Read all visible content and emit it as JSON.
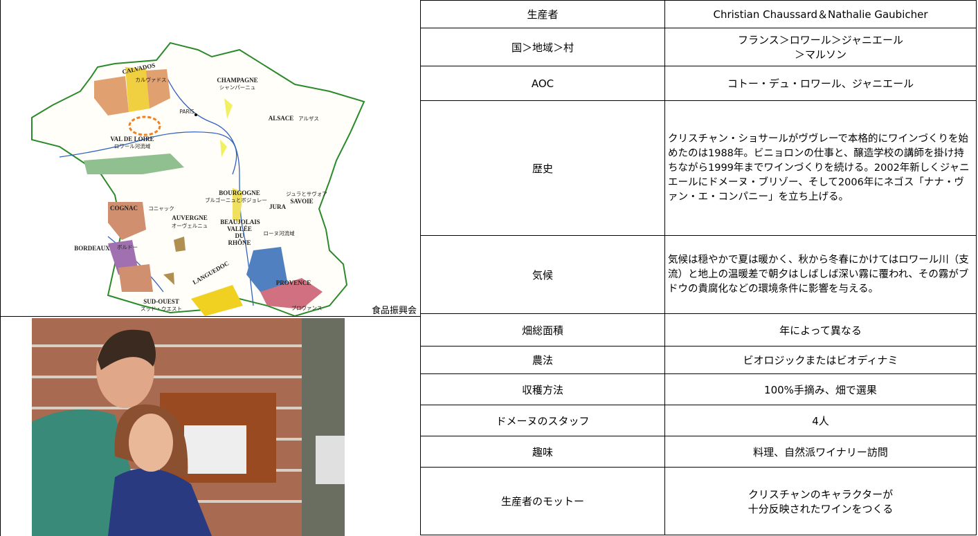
{
  "map": {
    "labels": [
      "CHAMPAGNE",
      "シャンパーニュ",
      "CALVADOS",
      "カルヴァドス",
      "PARIS",
      "ALSACE",
      "アルザス",
      "VAL DE LOIRE",
      "ロワール河流域",
      "BOURGOGNE",
      "ブルゴーニュとボジョレー",
      "JURA",
      "ジュラとサヴォア",
      "SAVOIE",
      "BEAUJOLAIS",
      "COGNAC",
      "コニャック",
      "AUVERGNE",
      "オーヴェルニュ",
      "VALLÉE",
      "DU",
      "RHÔNE",
      "ローヌ河流域",
      "BORDEAUX",
      "ボルドー",
      "LANGUEDOC",
      "PROVENCE",
      "プロヴァンス",
      "SUD-OUEST",
      "スッド・ウエスト"
    ],
    "credit": "食品振興会"
  },
  "table": {
    "rows": [
      [
        "生産者",
        [
          "Christian Chaussard＆Nathalie Gaubicher"
        ]
      ],
      [
        "国＞地域＞村",
        [
          "フランス＞ロワール＞ジャニエール",
          "＞マルソン"
        ]
      ],
      [
        "AOC",
        [
          "コトー・デュ・ロワール、ジャニエール"
        ]
      ],
      [
        "歴史",
        [
          "クリスチャン・ショサールがヴヴレーで本格的にワインづくりを始めたのは1988年。ビニョロンの仕事と、醸造学校の講師を掛け持ちながら1999年までワインづくりを続ける。2002年新しくジャニエールにドメーヌ・ブリゾー、そして2006年にネゴス「ナナ・ヴァン・エ・コンパニー」を立ち上げる。"
        ]
      ],
      [
        "気候",
        [
          "気候は穏やかで夏は暖かく、秋から冬春にかけてはロワール川（支流）と地上の温暖差で朝夕はしばしば深い霧に覆われ、その霧がブドウの貴腐化などの環境条件に影響を与える。"
        ]
      ],
      [
        "畑総面積",
        [
          "年によって異なる"
        ]
      ],
      [
        "農法",
        [
          "ビオロジックまたはビオディナミ"
        ]
      ],
      [
        "収穫方法",
        [
          "100%手摘み、畑で選果"
        ]
      ],
      [
        "ドメーヌのスタッフ",
        [
          "4人"
        ]
      ],
      [
        "趣味",
        [
          "料理、自然派ワイナリー訪問"
        ]
      ],
      [
        "生産者のモットー",
        [
          "クリスチャンのキャラクターが",
          "十分反映されたワインをつくる"
        ]
      ]
    ]
  }
}
